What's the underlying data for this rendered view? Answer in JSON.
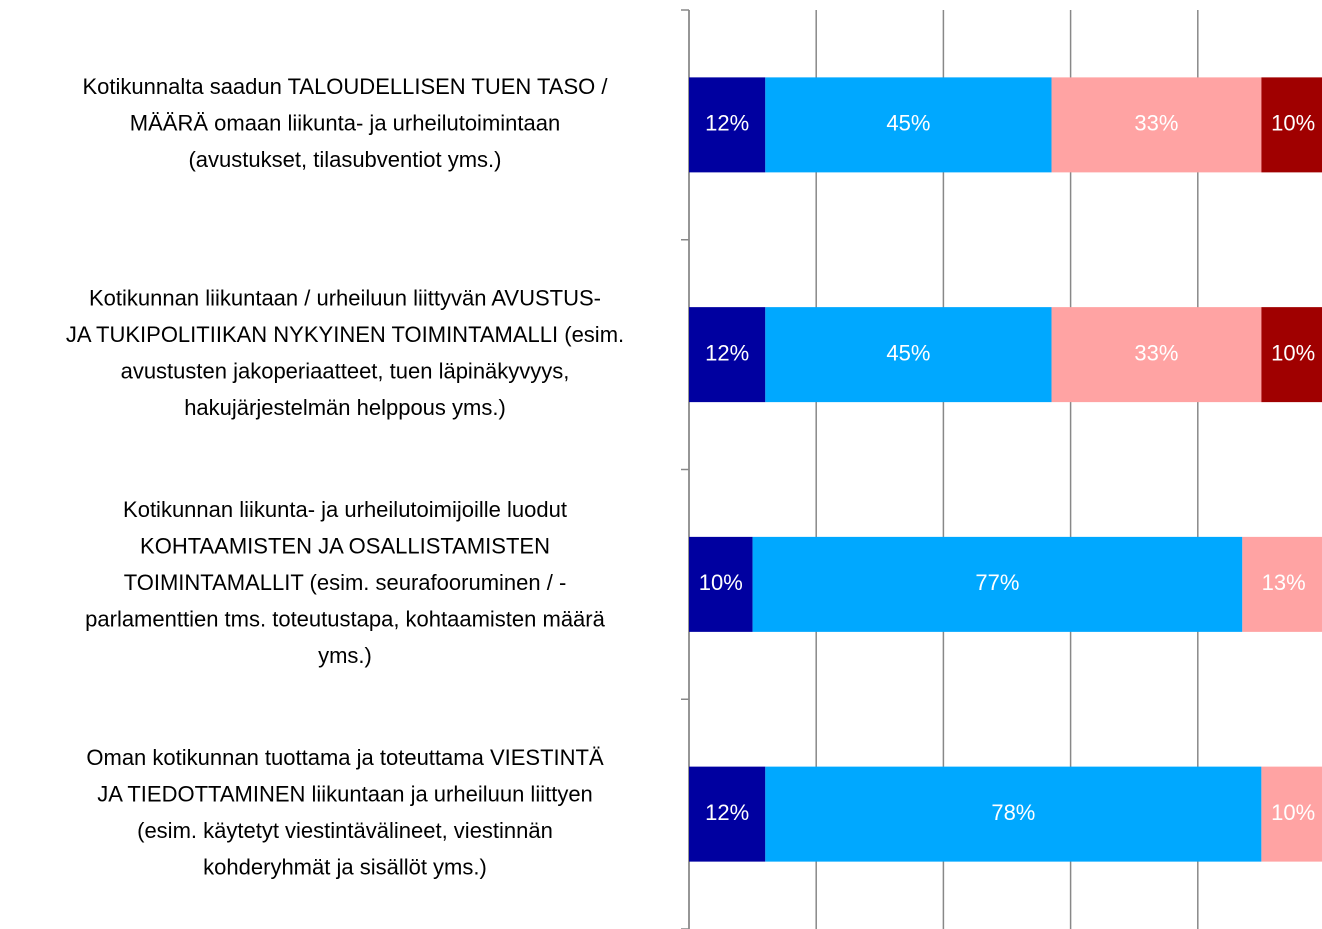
{
  "chart_data": {
    "type": "stacked-bar-horizontal",
    "categories": [
      [
        "Kotikunnalta saadun TALOUDELLISEN TUEN TASO /",
        "MÄÄRÄ omaan liikunta- ja urheilutoimintaan",
        "(avustukset, tilasubventiot yms.)"
      ],
      [
        "Kotikunnan liikuntaan / urheiluun liittyvän AVUSTUS-",
        "JA TUKIPOLITIIKAN NYKYINEN TOIMINTAMALLI (esim.",
        "avustusten jakoperiaatteet, tuen läpinäkyvyys,",
        "hakujärjestelmän helppous yms.)"
      ],
      [
        "Kotikunnan liikunta- ja urheilutoimijoille luodut",
        "KOHTAAMISTEN JA OSALLISTAMISTEN",
        "TOIMINTAMALLIT (esim. seurafooruminen / -",
        "parlamenttien tms. toteutustapa, kohtaamisten määrä",
        "yms.)"
      ],
      [
        "Oman kotikunnan tuottama ja toteuttama VIESTINTÄ",
        "JA TIEDOTTAMINEN liikuntaan ja urheiluun liittyen",
        "(esim. käytetyt viestintävälineet, viestinnän",
        "kohderyhmät ja sisällöt yms.)"
      ]
    ],
    "series": [
      {
        "color": "#0000a0",
        "values": [
          12,
          12,
          10,
          12
        ],
        "value_labels": [
          "12%",
          "12%",
          "10%",
          "12%"
        ]
      },
      {
        "color": "#00a8ff",
        "values": [
          45,
          45,
          77,
          78
        ],
        "value_labels": [
          "45%",
          "45%",
          "77%",
          "78%"
        ]
      },
      {
        "color": "#ffa3a3",
        "values": [
          33,
          33,
          13,
          10
        ],
        "value_labels": [
          "33%",
          "33%",
          "13%",
          "10%"
        ]
      },
      {
        "color": "#a00000",
        "values": [
          10,
          10,
          null,
          null
        ],
        "value_labels": [
          "10%",
          "10%",
          null,
          null
        ]
      }
    ],
    "xlim": [
      0,
      100
    ],
    "xticks": [
      0,
      20,
      40,
      60,
      80,
      100
    ],
    "grid": true
  }
}
